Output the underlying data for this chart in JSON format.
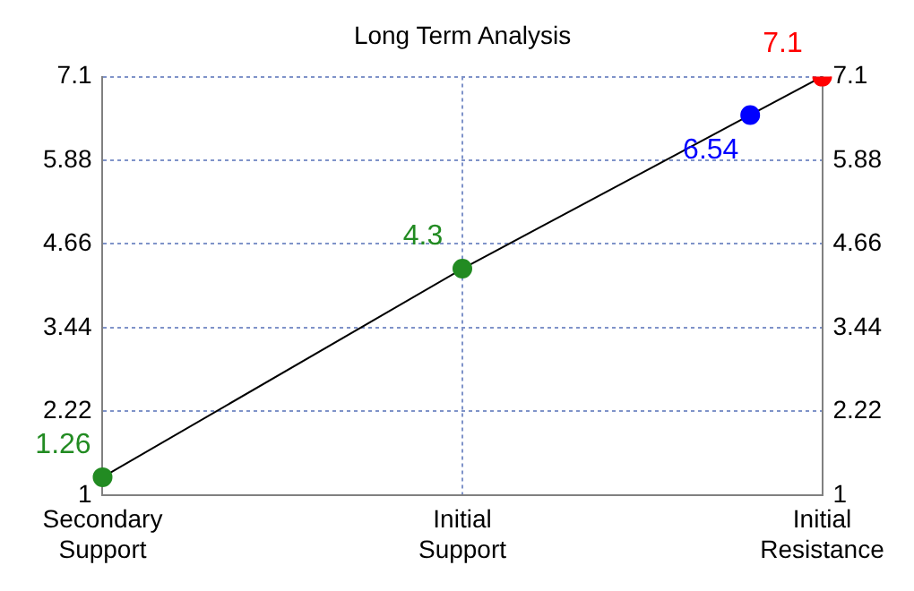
{
  "chart_data": {
    "type": "line",
    "title": "Long Term Analysis",
    "categories": [
      "Secondary Support",
      null,
      null,
      null,
      null,
      "Initial Support",
      null,
      null,
      null,
      null,
      "Initial Resistance"
    ],
    "series": [
      {
        "color": "#000000",
        "colors": [
          "#228b22",
          null,
          null,
          null,
          null,
          "#228b22",
          null,
          null,
          null,
          "#0000ff",
          "#ff0000"
        ],
        "values": [
          1.26,
          null,
          null,
          null,
          null,
          4.3,
          null,
          null,
          null,
          6.54,
          7.1
        ]
      }
    ],
    "data_labels": true,
    "marker": "circle",
    "line_style": "solid",
    "grid": true,
    "ylim": [
      1,
      7.1
    ],
    "yticks": [
      1,
      2.22,
      3.44,
      4.66,
      5.88,
      7.1
    ],
    "y2lim": [
      1,
      7.1
    ],
    "y2ticks": [
      1,
      2.22,
      3.44,
      4.66,
      5.88,
      7.1
    ]
  }
}
